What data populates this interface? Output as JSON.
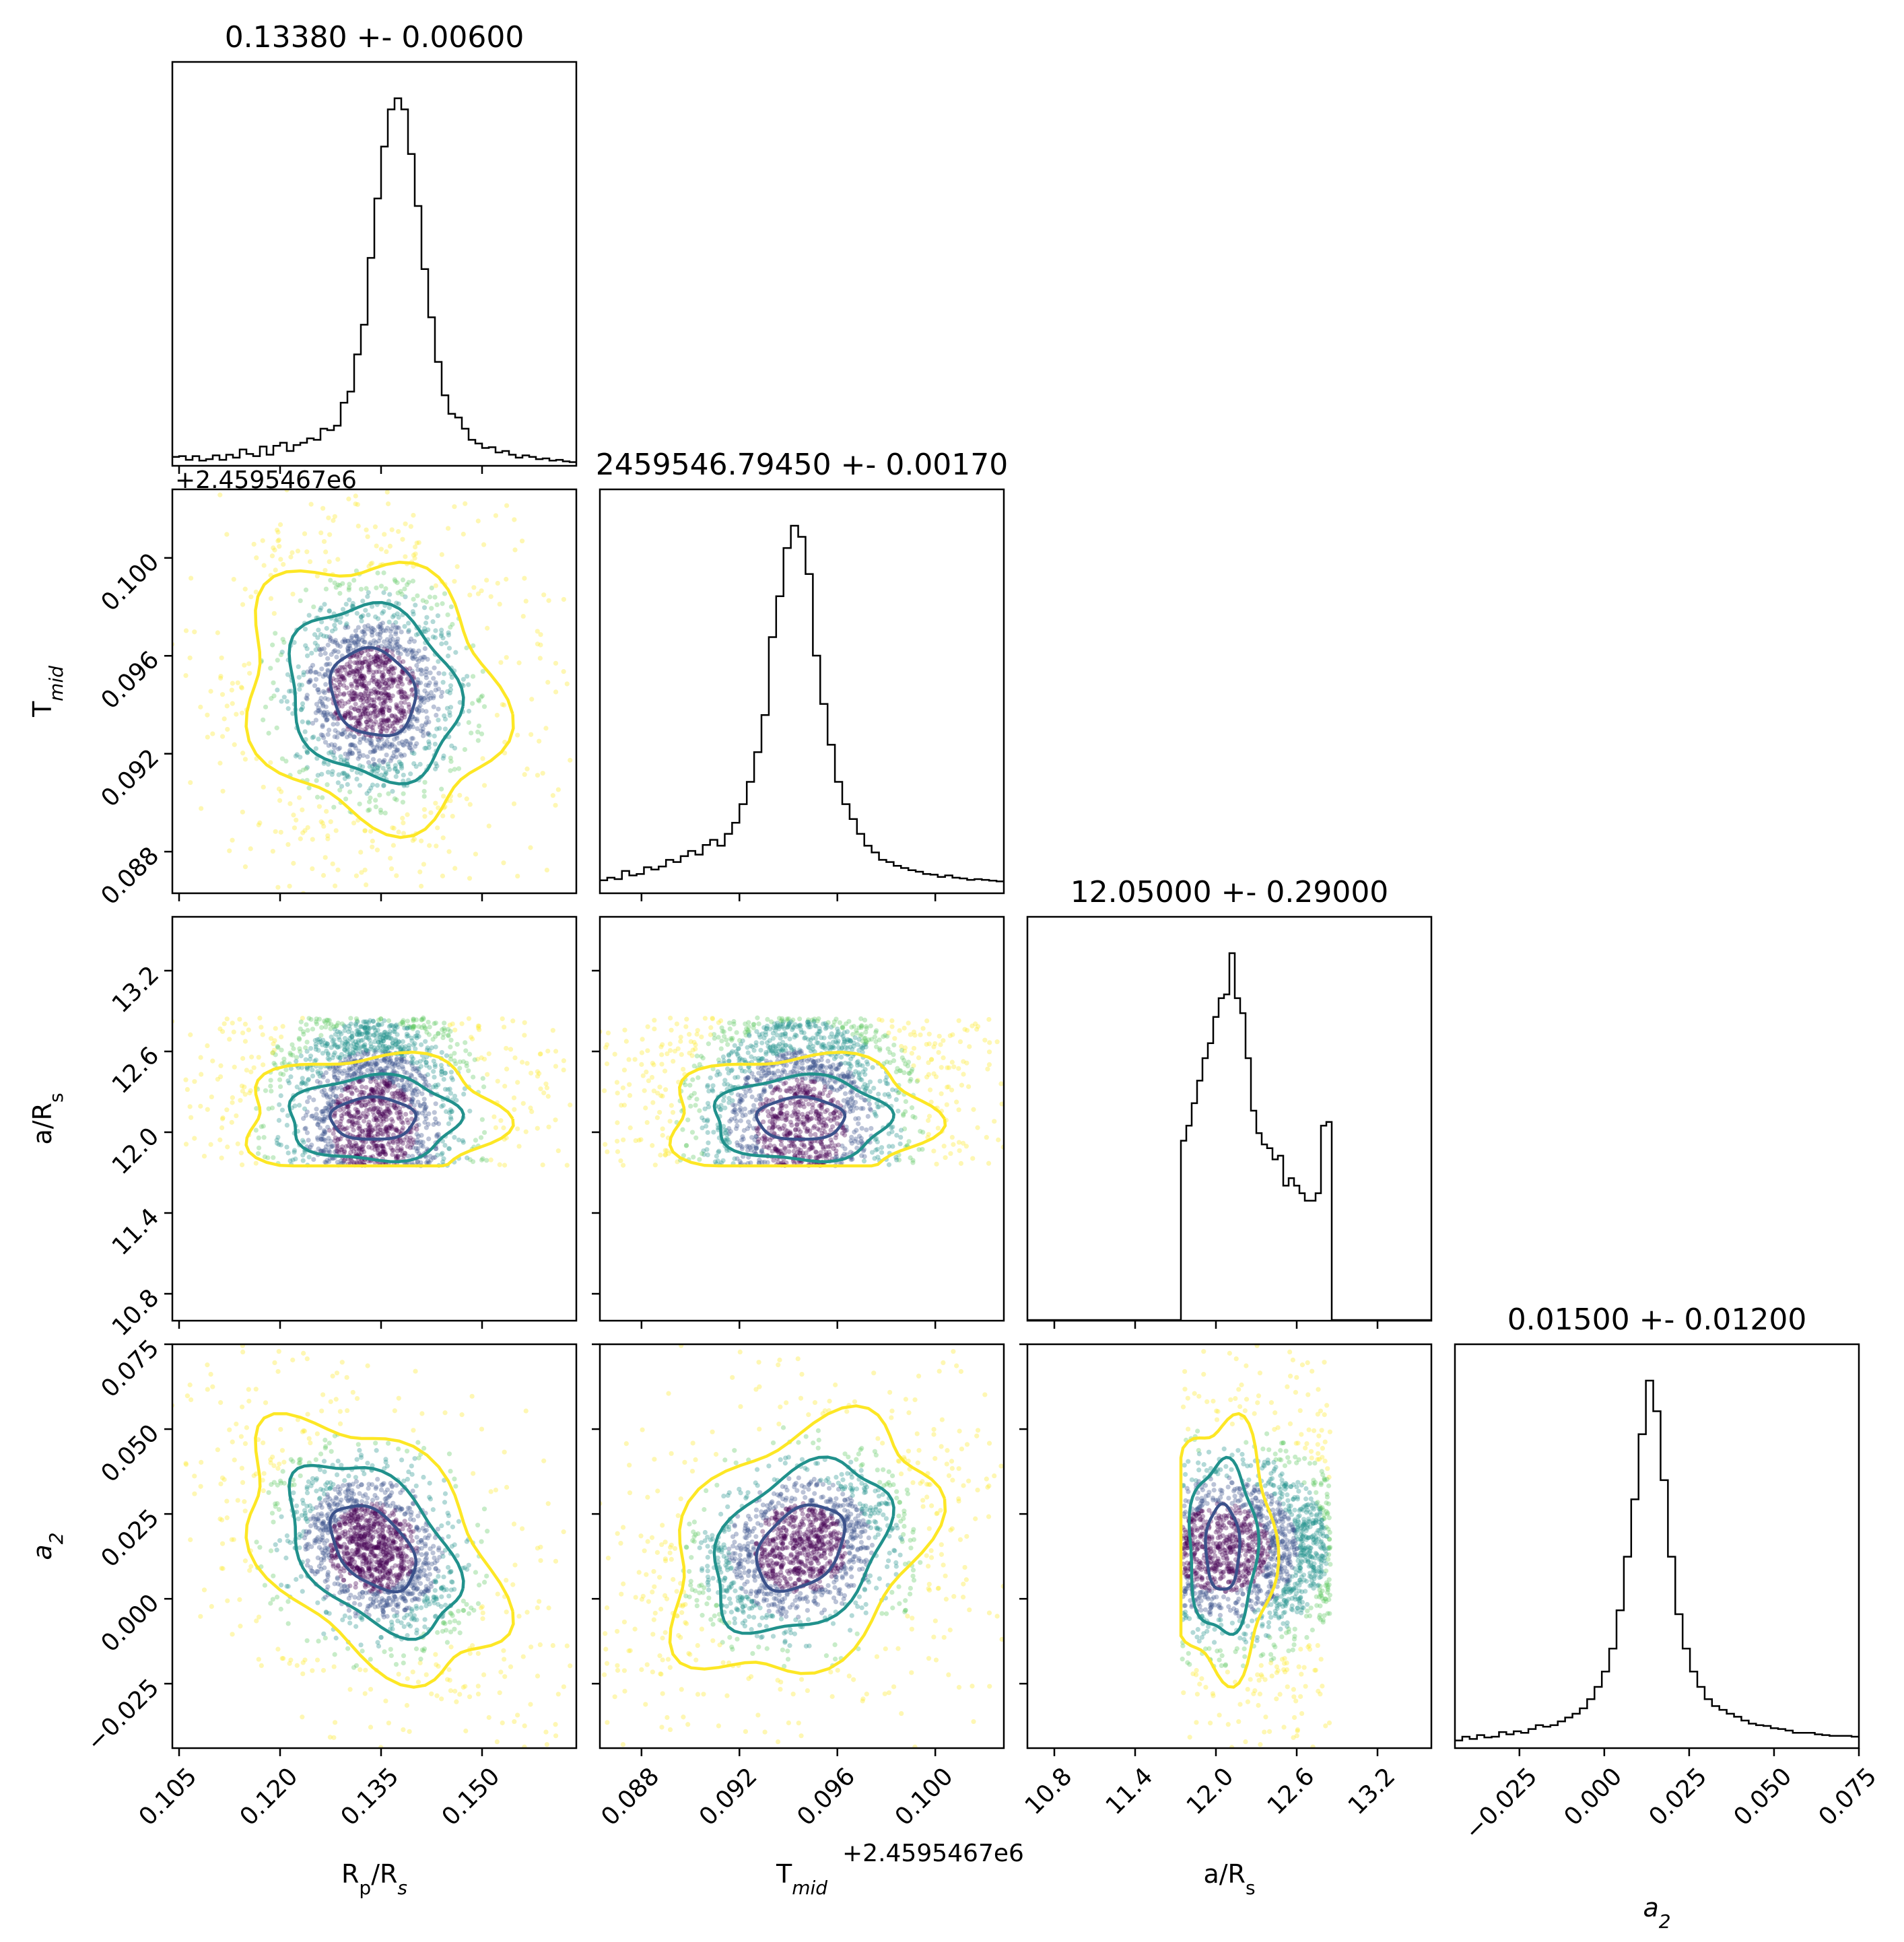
{
  "chart_data": {
    "type": "scatter",
    "title": "",
    "parameters": [
      {
        "key": "rprs",
        "label": "R",
        "sub": "p",
        "label_tail": "/R",
        "sub2": "s",
        "italic_sub": false,
        "range": [
          0.104,
          0.164
        ],
        "ticks": [
          0.105,
          0.12,
          0.135,
          0.15
        ],
        "tick_labels": [
          "0.105",
          "0.120",
          "0.135",
          "0.150"
        ],
        "median": 0.1338,
        "sigma": 0.006,
        "title": "0.13380 +- 0.00600",
        "offset_text": ""
      },
      {
        "key": "tmid",
        "label": "T",
        "sub": "mid",
        "label_tail": "",
        "sub2": "",
        "italic_sub": true,
        "range": [
          0.0863,
          0.1028
        ],
        "ticks": [
          0.088,
          0.092,
          0.096,
          0.1
        ],
        "tick_labels": [
          "0.088",
          "0.092",
          "0.096",
          "0.100"
        ],
        "median": 0.0945,
        "sigma": 0.0017,
        "title": "2459546.79450 +- 0.00170",
        "offset_text": "+2.4595467e6"
      },
      {
        "key": "ars",
        "label": "a/R",
        "sub": "s",
        "label_tail": "",
        "sub2": "",
        "italic_sub": false,
        "range": [
          10.6,
          13.6
        ],
        "ticks": [
          10.8,
          11.4,
          12.0,
          12.6,
          13.2
        ],
        "tick_labels": [
          "10.8",
          "11.4",
          "12.0",
          "12.6",
          "13.2"
        ],
        "median": 12.05,
        "sigma": 0.29,
        "title": "12.05000 +- 0.29000",
        "offset_text": ""
      },
      {
        "key": "a2",
        "label": "a",
        "sub": "2",
        "label_tail": "",
        "sub2": "",
        "italic_sub": true,
        "italic_main": true,
        "range": [
          -0.044,
          0.075
        ],
        "ticks": [
          -0.025,
          0.0,
          0.025,
          0.05,
          0.075
        ],
        "tick_labels": [
          "−0.025",
          "0.000",
          "0.025",
          "0.050",
          "0.075"
        ],
        "median": 0.015,
        "sigma": 0.012,
        "title": "0.01500 +- 0.01200",
        "offset_text": ""
      }
    ],
    "histograms": {
      "rprs": {
        "bins": [
          0.104,
          0.164
        ],
        "values": [
          0.024,
          0.026,
          0.016,
          0.026,
          0.014,
          0.018,
          0.028,
          0.016,
          0.03,
          0.022,
          0.044,
          0.032,
          0.026,
          0.052,
          0.03,
          0.054,
          0.062,
          0.04,
          0.056,
          0.062,
          0.074,
          0.07,
          0.1,
          0.096,
          0.108,
          0.17,
          0.2,
          0.3,
          0.38,
          0.56,
          0.72,
          0.86,
          0.96,
          0.99,
          0.96,
          0.84,
          0.7,
          0.53,
          0.4,
          0.28,
          0.19,
          0.14,
          0.13,
          0.1,
          0.07,
          0.06,
          0.048,
          0.05,
          0.036,
          0.04,
          0.03,
          0.022,
          0.028,
          0.024,
          0.018,
          0.02,
          0.014,
          0.016,
          0.012,
          0.01
        ]
      },
      "tmid": {
        "bins": [
          0.0863,
          0.1028
        ],
        "values": [
          0.035,
          0.042,
          0.038,
          0.06,
          0.048,
          0.052,
          0.07,
          0.064,
          0.072,
          0.09,
          0.084,
          0.1,
          0.114,
          0.104,
          0.13,
          0.144,
          0.128,
          0.16,
          0.19,
          0.24,
          0.3,
          0.38,
          0.48,
          0.69,
          0.8,
          0.93,
          0.99,
          0.96,
          0.86,
          0.64,
          0.51,
          0.4,
          0.3,
          0.24,
          0.2,
          0.16,
          0.128,
          0.11,
          0.09,
          0.084,
          0.074,
          0.068,
          0.062,
          0.058,
          0.052,
          0.05,
          0.044,
          0.048,
          0.042,
          0.04,
          0.036,
          0.038,
          0.036,
          0.034,
          0.032
        ]
      },
      "ars": {
        "bins": [
          11.74,
          12.86
        ],
        "values": [
          0.48,
          0.52,
          0.58,
          0.64,
          0.7,
          0.74,
          0.81,
          0.86,
          0.87,
          0.98,
          0.86,
          0.82,
          0.7,
          0.56,
          0.5,
          0.47,
          0.46,
          0.43,
          0.44,
          0.36,
          0.38,
          0.36,
          0.34,
          0.32,
          0.32,
          0.34,
          0.52,
          0.53
        ]
      },
      "a2": {
        "bins": [
          -0.044,
          0.075
        ],
        "values": [
          0.02,
          0.03,
          0.024,
          0.034,
          0.028,
          0.03,
          0.042,
          0.036,
          0.044,
          0.04,
          0.05,
          0.06,
          0.056,
          0.06,
          0.07,
          0.08,
          0.09,
          0.104,
          0.128,
          0.16,
          0.2,
          0.26,
          0.36,
          0.5,
          0.65,
          0.82,
          0.96,
          0.88,
          0.7,
          0.5,
          0.35,
          0.26,
          0.2,
          0.16,
          0.128,
          0.11,
          0.1,
          0.09,
          0.082,
          0.072,
          0.064,
          0.06,
          0.058,
          0.052,
          0.05,
          0.046,
          0.04,
          0.04,
          0.04,
          0.036,
          0.034,
          0.032,
          0.032,
          0.032,
          0.03
        ]
      }
    },
    "colormap": [
      "#440154",
      "#3b528b",
      "#21918c",
      "#5ec962",
      "#fde725"
    ],
    "contour_colors": [
      "#3b528b",
      "#21918c",
      "#fde725"
    ],
    "contour_levels_sigma": [
      1,
      2,
      3
    ],
    "hist_color": "#000000"
  }
}
